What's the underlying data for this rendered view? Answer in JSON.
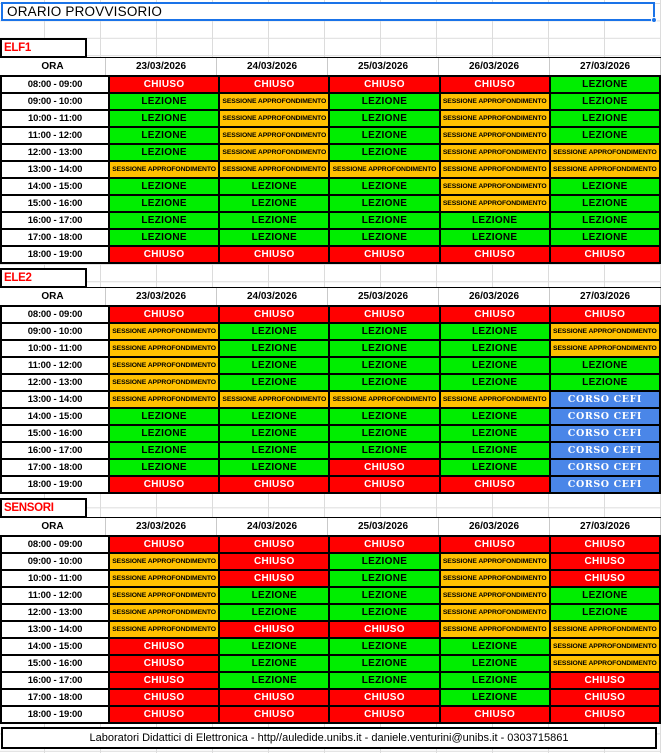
{
  "title": "ORARIO PROVVISORIO",
  "columns": [
    "ORA",
    "23/03/2026",
    "24/03/2026",
    "25/03/2026",
    "26/03/2026",
    "27/03/2026"
  ],
  "statuses": {
    "C": {
      "label": "CHIUSO",
      "bg": "#ff0000",
      "fg": "#ffffff"
    },
    "L": {
      "label": "LEZIONE",
      "bg": "#00ee00",
      "fg": "#000000"
    },
    "S": {
      "label": "SESSIONE APPROFONDIMENTO",
      "bg": "#ffc000",
      "fg": "#000000"
    },
    "F": {
      "label": "CORSO CEFI",
      "bg": "#4a86e8",
      "fg": "#ffffff"
    }
  },
  "sections": [
    {
      "name": "ELF1",
      "rows": [
        {
          "time": "08:00 - 09:00",
          "cells": [
            "C",
            "C",
            "C",
            "C",
            "L"
          ]
        },
        {
          "time": "09:00 - 10:00",
          "cells": [
            "L",
            "S",
            "L",
            "S",
            "L"
          ]
        },
        {
          "time": "10:00 - 11:00",
          "cells": [
            "L",
            "S",
            "L",
            "S",
            "L"
          ]
        },
        {
          "time": "11:00 - 12:00",
          "cells": [
            "L",
            "S",
            "L",
            "S",
            "L"
          ]
        },
        {
          "time": "12:00 - 13:00",
          "cells": [
            "L",
            "S",
            "L",
            "S",
            "S"
          ]
        },
        {
          "time": "13:00 - 14:00",
          "cells": [
            "S",
            "S",
            "S",
            "S",
            "S"
          ]
        },
        {
          "time": "14:00 - 15:00",
          "cells": [
            "L",
            "L",
            "L",
            "S",
            "L"
          ]
        },
        {
          "time": "15:00 - 16:00",
          "cells": [
            "L",
            "L",
            "L",
            "S",
            "L"
          ]
        },
        {
          "time": "16:00 - 17:00",
          "cells": [
            "L",
            "L",
            "L",
            "L",
            "L"
          ]
        },
        {
          "time": "17:00 - 18:00",
          "cells": [
            "L",
            "L",
            "L",
            "L",
            "L"
          ]
        },
        {
          "time": "18:00 - 19:00",
          "cells": [
            "C",
            "C",
            "C",
            "C",
            "C"
          ]
        }
      ]
    },
    {
      "name": "ELE2",
      "rows": [
        {
          "time": "08:00 - 09:00",
          "cells": [
            "C",
            "C",
            "C",
            "C",
            "C"
          ]
        },
        {
          "time": "09:00 - 10:00",
          "cells": [
            "S",
            "L",
            "L",
            "L",
            "S"
          ]
        },
        {
          "time": "10:00 - 11:00",
          "cells": [
            "S",
            "L",
            "L",
            "L",
            "S"
          ]
        },
        {
          "time": "11:00 - 12:00",
          "cells": [
            "S",
            "L",
            "L",
            "L",
            "L"
          ]
        },
        {
          "time": "12:00 - 13:00",
          "cells": [
            "S",
            "L",
            "L",
            "L",
            "L"
          ]
        },
        {
          "time": "13:00 - 14:00",
          "cells": [
            "S",
            "S",
            "S",
            "S",
            "F"
          ]
        },
        {
          "time": "14:00 - 15:00",
          "cells": [
            "L",
            "L",
            "L",
            "L",
            "F"
          ]
        },
        {
          "time": "15:00 - 16:00",
          "cells": [
            "L",
            "L",
            "L",
            "L",
            "F"
          ]
        },
        {
          "time": "16:00 - 17:00",
          "cells": [
            "L",
            "L",
            "L",
            "L",
            "F"
          ]
        },
        {
          "time": "17:00 - 18:00",
          "cells": [
            "L",
            "L",
            "C",
            "L",
            "F"
          ]
        },
        {
          "time": "18:00 - 19:00",
          "cells": [
            "C",
            "C",
            "C",
            "C",
            "F"
          ]
        }
      ]
    },
    {
      "name": "SENSORI",
      "rows": [
        {
          "time": "08:00 - 09:00",
          "cells": [
            "C",
            "C",
            "C",
            "C",
            "C"
          ]
        },
        {
          "time": "09:00 - 10:00",
          "cells": [
            "S",
            "C",
            "L",
            "S",
            "C"
          ]
        },
        {
          "time": "10:00 - 11:00",
          "cells": [
            "S",
            "C",
            "L",
            "S",
            "C"
          ]
        },
        {
          "time": "11:00 - 12:00",
          "cells": [
            "S",
            "L",
            "L",
            "S",
            "L"
          ]
        },
        {
          "time": "12:00 - 13:00",
          "cells": [
            "S",
            "L",
            "L",
            "S",
            "L"
          ]
        },
        {
          "time": "13:00 - 14:00",
          "cells": [
            "S",
            "C",
            "C",
            "S",
            "S"
          ]
        },
        {
          "time": "14:00 - 15:00",
          "cells": [
            "C",
            "L",
            "L",
            "L",
            "S"
          ]
        },
        {
          "time": "15:00 - 16:00",
          "cells": [
            "C",
            "L",
            "L",
            "L",
            "S"
          ]
        },
        {
          "time": "16:00 - 17:00",
          "cells": [
            "C",
            "L",
            "L",
            "L",
            "C"
          ]
        },
        {
          "time": "17:00 - 18:00",
          "cells": [
            "C",
            "C",
            "C",
            "L",
            "C"
          ]
        },
        {
          "time": "18:00 - 19:00",
          "cells": [
            "C",
            "C",
            "C",
            "C",
            "C"
          ]
        }
      ]
    }
  ],
  "footer": {
    "text": "Laboratori Didattici di Elettronica  -  http//auledide.unibs.it  -  daniele.venturini@unibs.it  -  0303715861"
  },
  "colors": {
    "selection": "#1a73e8",
    "section_label": "#ff0000"
  }
}
